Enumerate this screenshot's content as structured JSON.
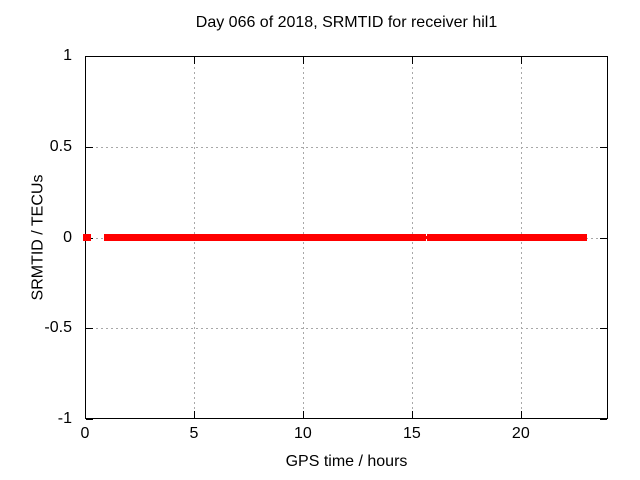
{
  "chart_data": {
    "type": "scatter",
    "title": "Day 066 of 2018, SRMTID for receiver hil1",
    "xlabel": "GPS time / hours",
    "ylabel": "SRMTID / TECUs",
    "xlim": [
      0,
      24
    ],
    "ylim": [
      -1,
      1
    ],
    "grid": true,
    "legend": "none",
    "xticks": [
      {
        "value": 0,
        "label": "0"
      },
      {
        "value": 5,
        "label": "5"
      },
      {
        "value": 10,
        "label": "10"
      },
      {
        "value": 15,
        "label": "15"
      },
      {
        "value": 20,
        "label": "20"
      }
    ],
    "yticks": [
      {
        "value": 1,
        "label": "1"
      },
      {
        "value": 0.5,
        "label": "0.5"
      },
      {
        "value": 0,
        "label": "0"
      },
      {
        "value": -0.5,
        "label": "-0.5"
      },
      {
        "value": -1,
        "label": "-1"
      }
    ],
    "colors": {
      "marker": "#ff0000",
      "grid": "#a8a8a8",
      "border": "#000000",
      "background": "#ffffff",
      "text": "#000000"
    },
    "series": [
      {
        "name": "SRMTID",
        "marker": "square",
        "color": "#ff0000",
        "y_value": 0,
        "x_segments": [
          {
            "start": 0.0,
            "end": 0.1,
            "density": "thick"
          },
          {
            "start": 0.95,
            "end": 11.5,
            "density": "thick"
          },
          {
            "start": 11.66,
            "end": 14.32,
            "density": "thick"
          },
          {
            "start": 14.35,
            "end": 14.47,
            "density": "thin"
          },
          {
            "start": 14.5,
            "end": 14.7,
            "density": "thick"
          },
          {
            "start": 14.95,
            "end": 15.45,
            "density": "thick"
          },
          {
            "start": 15.45,
            "end": 15.75,
            "density": "thin"
          },
          {
            "start": 15.78,
            "end": 22.87,
            "density": "thick"
          }
        ]
      }
    ]
  }
}
